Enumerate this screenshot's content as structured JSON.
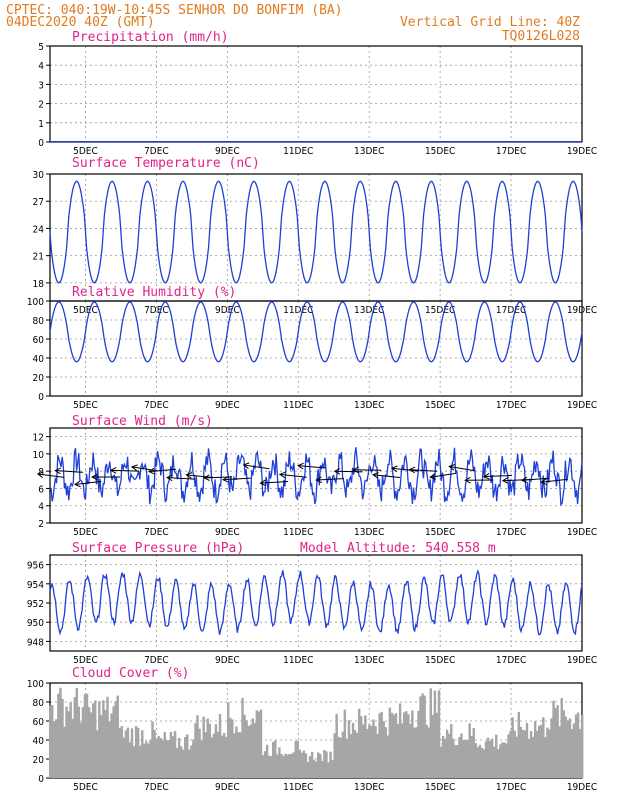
{
  "header": {
    "line1_left": "CPTEC:  040:19W-10:45S  SENHOR DO BONFIM (BA)",
    "line2_left": "04DEC2020 40Z (GMT)",
    "line2_right": "Vertical Grid Line: 40Z",
    "line3_right": "TQ0126L028"
  },
  "colors": {
    "header": "#e07b20",
    "title": "#e0228a",
    "line": "#1f3fd6",
    "bars": "#a6a6a6",
    "arrows": "#000000"
  },
  "x_labels": [
    "5DEC",
    "7DEC",
    "9DEC",
    "11DEC",
    "13DEC",
    "15DEC",
    "17DEC",
    "19DEC"
  ],
  "chart_data": [
    {
      "type": "line",
      "title": "Precipitation (mm/h)",
      "ylim": [
        0,
        5
      ],
      "yticks": [
        "0",
        "1",
        "2",
        "3",
        "4",
        "5"
      ],
      "x_days": [
        4.4,
        19.0
      ],
      "series": [
        {
          "name": "precip",
          "generator": "flat",
          "value": 0.02
        }
      ]
    },
    {
      "type": "line",
      "title": "Surface Temperature (nC)",
      "ylim": [
        16,
        30
      ],
      "yticks": [
        "18",
        "21",
        "24",
        "27",
        "30"
      ],
      "x_days": [
        4.4,
        19.0
      ],
      "series": [
        {
          "name": "temp",
          "generator": "diurnal",
          "min": 18,
          "max": 29.2,
          "phase": 0.75,
          "sharp": 1.4
        }
      ]
    },
    {
      "type": "line",
      "title": "Relative Humidity (%)",
      "ylim": [
        0,
        100
      ],
      "yticks": [
        "0",
        "20",
        "40",
        "60",
        "80",
        "100"
      ],
      "x_days": [
        4.4,
        19.0
      ],
      "series": [
        {
          "name": "rh",
          "generator": "diurnal",
          "min": 36,
          "max": 99,
          "phase": 0.25,
          "sharp": 1.2
        }
      ]
    },
    {
      "type": "line",
      "title": "Surface Wind (m/s)",
      "ylim": [
        2,
        13
      ],
      "yticks": [
        "2",
        "4",
        "6",
        "8",
        "10",
        "12"
      ],
      "x_days": [
        4.4,
        19.0
      ],
      "series": [
        {
          "name": "wind_speed",
          "generator": "noisy",
          "base": 7.5,
          "amp": 1.8
        }
      ],
      "arrows": {
        "count": 28,
        "length": 3.0,
        "baseline": 7.6
      }
    },
    {
      "type": "line",
      "title": "Surface Pressure (hPa)",
      "annotation": "Model Altitude: 540.558 m",
      "ylim": [
        947,
        957
      ],
      "yticks": [
        "948",
        "950",
        "952",
        "954",
        "956"
      ],
      "x_days": [
        4.4,
        19.0
      ],
      "series": [
        {
          "name": "pressure",
          "generator": "semidiurnal",
          "base": 952.0,
          "amp": 2.5
        }
      ]
    },
    {
      "type": "bar",
      "title": "Cloud Cover (%)",
      "ylim": [
        0,
        100
      ],
      "yticks": [
        "0",
        "20",
        "40",
        "60",
        "80",
        "100"
      ],
      "x_days": [
        4.4,
        19.0
      ],
      "series": [
        {
          "name": "cloud",
          "generator": "cloud"
        }
      ]
    }
  ]
}
